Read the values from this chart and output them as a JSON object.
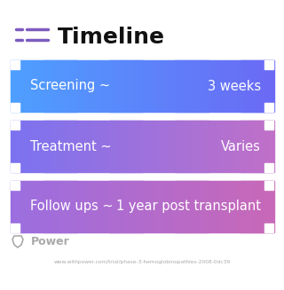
{
  "title": "Timeline",
  "title_icon_color": "#7c5cbf",
  "background_color": "#ffffff",
  "rows": [
    {
      "left_label": "Screening ~",
      "right_label": "3 weeks",
      "gradient_left": "#4d9fff",
      "gradient_right": "#6b6af5",
      "text_color": "#ffffff"
    },
    {
      "left_label": "Treatment ~",
      "right_label": "Varies",
      "gradient_left": "#7b72f0",
      "gradient_right": "#c070c8",
      "text_color": "#ffffff"
    },
    {
      "left_label": "Follow ups ~",
      "right_label": "1 year post transplant",
      "gradient_left": "#9b6ee0",
      "gradient_right": "#c868b8",
      "text_color": "#ffffff"
    }
  ],
  "footer_logo_text": "Power",
  "footer_logo_color": "#aaaaaa",
  "footer_url": "www.withpower.com/trial/phase-3-hemoglobinopathies-2008-0dc39",
  "footer_url_color": "#aaaaaa"
}
